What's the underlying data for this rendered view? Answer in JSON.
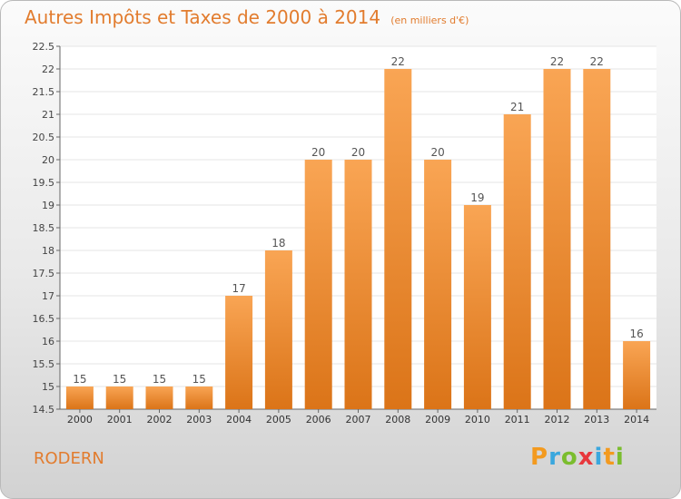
{
  "title": "Autres Impôts et Taxes de 2000 à 2014",
  "subtitle": "(en milliers d'€)",
  "commune": "RODERN",
  "brand": {
    "text": "Proxiti",
    "letters": [
      {
        "ch": "P",
        "color": "#f39a1f"
      },
      {
        "ch": "r",
        "color": "#3aa7de"
      },
      {
        "ch": "o",
        "color": "#7bbd2e"
      },
      {
        "ch": "x",
        "color": "#e8383d"
      },
      {
        "ch": "i",
        "color": "#3aa7de"
      },
      {
        "ch": "t",
        "color": "#f39a1f"
      },
      {
        "ch": "i",
        "color": "#7bbd2e"
      }
    ]
  },
  "colors": {
    "accent": "#e27c2e",
    "bar_top": "#f9a554",
    "bar_bottom": "#db7418",
    "axis": "#666666",
    "grid": "#e6e6e6"
  },
  "chart_data": {
    "type": "bar",
    "title": "Autres Impôts et Taxes de 2000 à 2014",
    "subtitle": "(en milliers d'€)",
    "categories": [
      "2000",
      "2001",
      "2002",
      "2003",
      "2004",
      "2005",
      "2006",
      "2007",
      "2008",
      "2009",
      "2010",
      "2011",
      "2012",
      "2013",
      "2014"
    ],
    "values": [
      15,
      15,
      15,
      15,
      17,
      18,
      20,
      20,
      22,
      20,
      19,
      21,
      22,
      22,
      16
    ],
    "ylim": [
      14.5,
      22.5
    ],
    "yticks": [
      "14.5",
      "15",
      "15.5",
      "16",
      "16.5",
      "17",
      "17.5",
      "18",
      "18.5",
      "19",
      "19.5",
      "20",
      "20.5",
      "21",
      "21.5",
      "22",
      "22.5"
    ],
    "grid": true
  }
}
